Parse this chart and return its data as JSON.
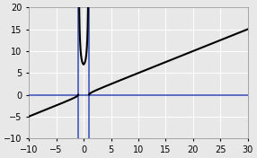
{
  "xlim": [
    -10,
    30
  ],
  "ylim": [
    -10,
    20
  ],
  "xticks": [
    -10,
    -5,
    0,
    5,
    10,
    15,
    20,
    25,
    30
  ],
  "yticks": [
    -10,
    -5,
    0,
    5,
    10,
    15,
    20
  ],
  "asymptote_x1": -1,
  "asymptote_x2": 1,
  "hline_y": 0,
  "bg_color": "#e8e8e8",
  "grid_color": "#ffffff",
  "curve_color": "#000000",
  "asymptote_color": "#4455bb",
  "hline_color": "#4455bb",
  "linewidth_curve": 1.5,
  "linewidth_asymptote": 1.2,
  "linewidth_hline": 1.2,
  "tick_fontsize": 7,
  "mid_scale": 7.0,
  "outer_scale": 0.5
}
